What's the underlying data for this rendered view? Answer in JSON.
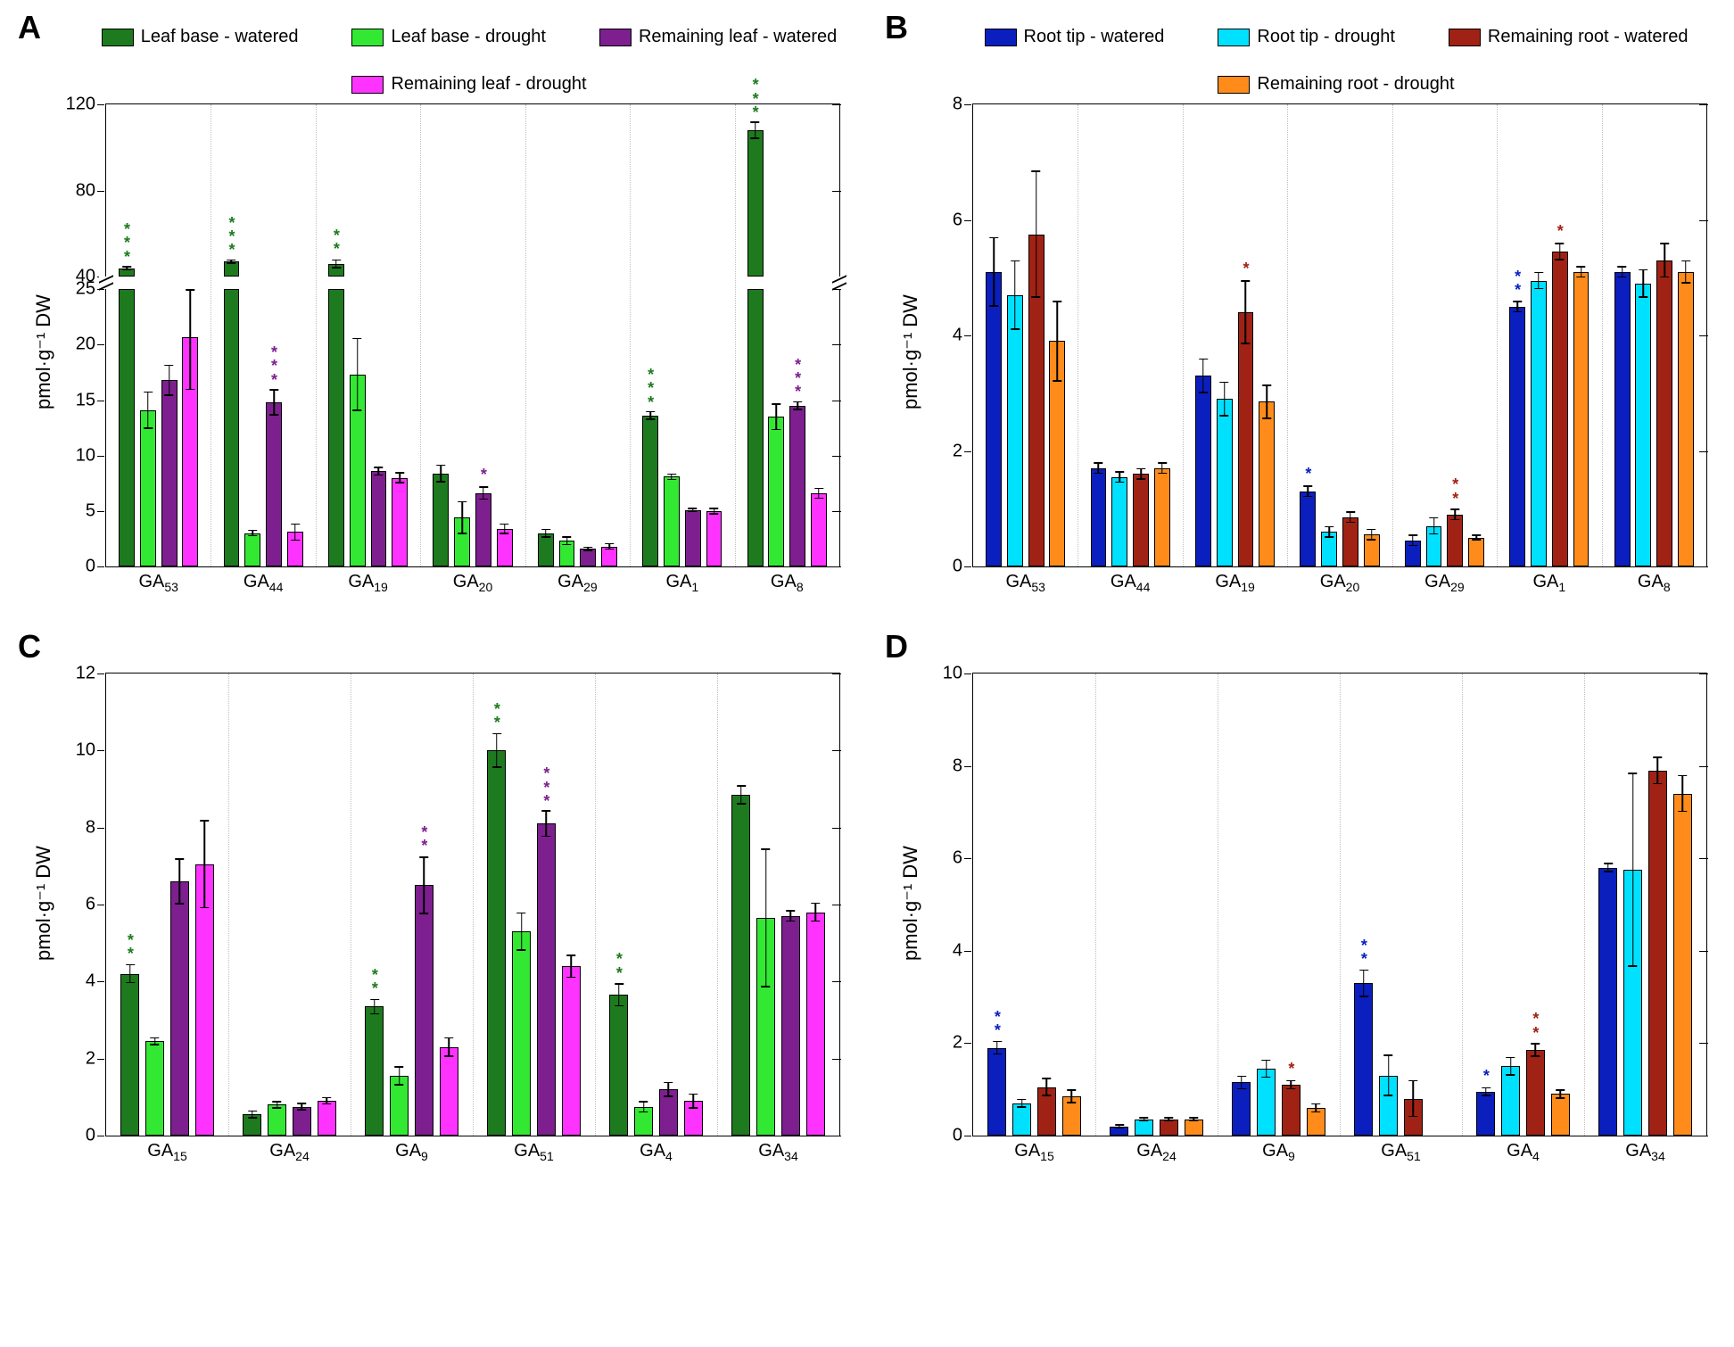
{
  "global": {
    "ylabel": "pmol·g⁻¹ DW",
    "colors": {
      "leaf_base_watered": "#1e7a1e",
      "leaf_base_drought": "#33e833",
      "remaining_leaf_watered": "#7d1f8e",
      "remaining_leaf_drought": "#ff33ff",
      "root_tip_watered": "#0a1fbe",
      "root_tip_drought": "#00e0ff",
      "remaining_root_watered": "#a02214",
      "remaining_root_drought": "#ff8c1a",
      "grid": "#bfbfbf",
      "axis": "#000000",
      "bg": "#ffffff"
    },
    "sig_colors": {
      "green": "#1e7a1e",
      "purple": "#7d1f8e",
      "navy": "#0a1fbe",
      "darkred": "#a02214"
    }
  },
  "panelA": {
    "label": "A",
    "legend": [
      {
        "label": "Leaf base - watered",
        "color": "leaf_base_watered"
      },
      {
        "label": "Leaf base - drought",
        "color": "leaf_base_drought"
      },
      {
        "label": "Remaining leaf - watered",
        "color": "remaining_leaf_watered"
      },
      {
        "label": "Remaining leaf - drought",
        "color": "remaining_leaf_drought"
      }
    ],
    "categories": [
      "GA₅₃",
      "GA₄₄",
      "GA₁₉",
      "GA₂₀",
      "GA₂₉",
      "GA₁",
      "GA₈"
    ],
    "broken_axis": {
      "lower_max": 25,
      "upper_min": 40,
      "upper_max": 120,
      "lower_frac": 0.6
    },
    "yticks_lower": [
      0,
      5,
      10,
      15,
      20,
      25
    ],
    "yticks_upper": [
      40,
      80,
      120
    ],
    "series": [
      {
        "color": "leaf_base_watered",
        "values": [
          44,
          47,
          46,
          8.4,
          3.0,
          13.6,
          108
        ],
        "err": [
          1,
          1,
          2,
          0.8,
          0.4,
          0.4,
          4
        ]
      },
      {
        "color": "leaf_base_drought",
        "values": [
          14.1,
          3.0,
          17.3,
          4.4,
          2.3,
          8.1,
          13.5
        ],
        "err": [
          1.7,
          0.3,
          3.3,
          1.5,
          0.4,
          0.3,
          1.2
        ]
      },
      {
        "color": "remaining_leaf_watered",
        "values": [
          16.8,
          14.8,
          8.6,
          6.6,
          1.6,
          5.1,
          14.5
        ],
        "err": [
          1.4,
          1.2,
          0.4,
          0.6,
          0.2,
          0.2,
          0.4
        ]
      },
      {
        "color": "remaining_leaf_drought",
        "values": [
          20.7,
          3.1,
          8.0,
          3.4,
          1.8,
          5.0,
          6.6
        ],
        "err": [
          4.8,
          0.8,
          0.5,
          0.5,
          0.3,
          0.3,
          0.5
        ]
      }
    ],
    "sig": [
      {
        "cat": 0,
        "series": 0,
        "stars": 3,
        "color": "green"
      },
      {
        "cat": 1,
        "series": 0,
        "stars": 3,
        "color": "green"
      },
      {
        "cat": 1,
        "series": 2,
        "stars": 3,
        "color": "purple"
      },
      {
        "cat": 2,
        "series": 0,
        "stars": 2,
        "color": "green"
      },
      {
        "cat": 3,
        "series": 2,
        "stars": 1,
        "color": "purple"
      },
      {
        "cat": 5,
        "series": 0,
        "stars": 3,
        "color": "green"
      },
      {
        "cat": 6,
        "series": 0,
        "stars": 3,
        "color": "green"
      },
      {
        "cat": 6,
        "series": 2,
        "stars": 3,
        "color": "purple"
      }
    ]
  },
  "panelB": {
    "label": "B",
    "legend": [
      {
        "label": "Root tip - watered",
        "color": "root_tip_watered"
      },
      {
        "label": "Root tip - drought",
        "color": "root_tip_drought"
      },
      {
        "label": "Remaining root - watered",
        "color": "remaining_root_watered"
      },
      {
        "label": "Remaining root - drought",
        "color": "remaining_root_drought"
      }
    ],
    "categories": [
      "GA₅₃",
      "GA₄₄",
      "GA₁₉",
      "GA₂₀",
      "GA₂₉",
      "GA₁",
      "GA₈"
    ],
    "ylim": [
      0,
      8
    ],
    "ytick_step": 2,
    "series": [
      {
        "color": "root_tip_watered",
        "values": [
          5.1,
          1.7,
          3.3,
          1.3,
          0.45,
          4.5,
          5.1
        ],
        "err": [
          0.6,
          0.1,
          0.3,
          0.1,
          0.1,
          0.1,
          0.1
        ]
      },
      {
        "color": "root_tip_drought",
        "values": [
          4.7,
          1.55,
          2.9,
          0.6,
          0.7,
          4.95,
          4.9
        ],
        "err": [
          0.6,
          0.1,
          0.3,
          0.1,
          0.15,
          0.15,
          0.25
        ]
      },
      {
        "color": "remaining_root_watered",
        "values": [
          5.75,
          1.6,
          4.4,
          0.85,
          0.9,
          5.45,
          5.3
        ],
        "err": [
          1.1,
          0.1,
          0.55,
          0.1,
          0.1,
          0.15,
          0.3
        ]
      },
      {
        "color": "remaining_root_drought",
        "values": [
          3.9,
          1.7,
          2.85,
          0.55,
          0.5,
          5.1,
          5.1
        ],
        "err": [
          0.7,
          0.1,
          0.3,
          0.1,
          0.05,
          0.1,
          0.2
        ]
      }
    ],
    "sig": [
      {
        "cat": 2,
        "series": 2,
        "stars": 1,
        "color": "darkred"
      },
      {
        "cat": 3,
        "series": 0,
        "stars": 1,
        "color": "navy"
      },
      {
        "cat": 4,
        "series": 2,
        "stars": 2,
        "color": "darkred"
      },
      {
        "cat": 5,
        "series": 0,
        "stars": 2,
        "color": "navy"
      },
      {
        "cat": 5,
        "series": 2,
        "stars": 1,
        "color": "darkred"
      }
    ]
  },
  "panelC": {
    "label": "C",
    "categories": [
      "GA₁₅",
      "GA₂₄",
      "GA₉",
      "GA₅₁",
      "GA₄",
      "GA₃₄"
    ],
    "ylim": [
      0,
      12
    ],
    "ytick_step": 2,
    "series": [
      {
        "color": "leaf_base_watered",
        "values": [
          4.2,
          0.55,
          3.35,
          10.0,
          3.65,
          8.85
        ],
        "err": [
          0.25,
          0.1,
          0.2,
          0.45,
          0.3,
          0.25
        ]
      },
      {
        "color": "leaf_base_drought",
        "values": [
          2.45,
          0.8,
          1.55,
          5.3,
          0.75,
          5.65
        ],
        "err": [
          0.1,
          0.1,
          0.25,
          0.5,
          0.15,
          1.8
        ]
      },
      {
        "color": "remaining_leaf_watered",
        "values": [
          6.6,
          0.75,
          6.5,
          8.1,
          1.2,
          5.7
        ],
        "err": [
          0.6,
          0.1,
          0.75,
          0.35,
          0.2,
          0.15
        ]
      },
      {
        "color": "remaining_leaf_drought",
        "values": [
          7.05,
          0.9,
          2.3,
          4.4,
          0.9,
          5.8
        ],
        "err": [
          1.15,
          0.1,
          0.25,
          0.3,
          0.2,
          0.25
        ]
      }
    ],
    "sig": [
      {
        "cat": 0,
        "series": 0,
        "stars": 2,
        "color": "green"
      },
      {
        "cat": 2,
        "series": 0,
        "stars": 2,
        "color": "green"
      },
      {
        "cat": 2,
        "series": 2,
        "stars": 2,
        "color": "purple"
      },
      {
        "cat": 3,
        "series": 0,
        "stars": 2,
        "color": "green"
      },
      {
        "cat": 3,
        "series": 2,
        "stars": 3,
        "color": "purple"
      },
      {
        "cat": 4,
        "series": 0,
        "stars": 2,
        "color": "green"
      }
    ]
  },
  "panelD": {
    "label": "D",
    "categories": [
      "GA₁₅",
      "GA₂₄",
      "GA₉",
      "GA₅₁",
      "GA₄",
      "GA₃₄"
    ],
    "ylim": [
      0,
      10
    ],
    "ytick_step": 2,
    "series": [
      {
        "color": "root_tip_watered",
        "values": [
          1.9,
          0.2,
          1.15,
          3.3,
          0.95,
          5.8
        ],
        "err": [
          0.15,
          0.05,
          0.15,
          0.3,
          0.1,
          0.1
        ]
      },
      {
        "color": "root_tip_drought",
        "values": [
          0.7,
          0.35,
          1.45,
          1.3,
          1.5,
          5.75
        ],
        "err": [
          0.1,
          0.05,
          0.2,
          0.45,
          0.2,
          2.1
        ]
      },
      {
        "color": "remaining_root_watered",
        "values": [
          1.05,
          0.35,
          1.1,
          0.8,
          1.85,
          7.9
        ],
        "err": [
          0.2,
          0.05,
          0.1,
          0.4,
          0.15,
          0.3
        ]
      },
      {
        "color": "remaining_root_drought",
        "values": [
          0.85,
          0.35,
          0.6,
          0,
          0.9,
          7.4
        ],
        "err": [
          0.15,
          0.05,
          0.1,
          0,
          0.1,
          0.4
        ]
      }
    ],
    "sig": [
      {
        "cat": 0,
        "series": 0,
        "stars": 2,
        "color": "navy"
      },
      {
        "cat": 2,
        "series": 2,
        "stars": 1,
        "color": "darkred"
      },
      {
        "cat": 3,
        "series": 0,
        "stars": 2,
        "color": "navy"
      },
      {
        "cat": 4,
        "series": 0,
        "stars": 1,
        "color": "navy"
      },
      {
        "cat": 4,
        "series": 2,
        "stars": 2,
        "color": "darkred"
      }
    ]
  }
}
